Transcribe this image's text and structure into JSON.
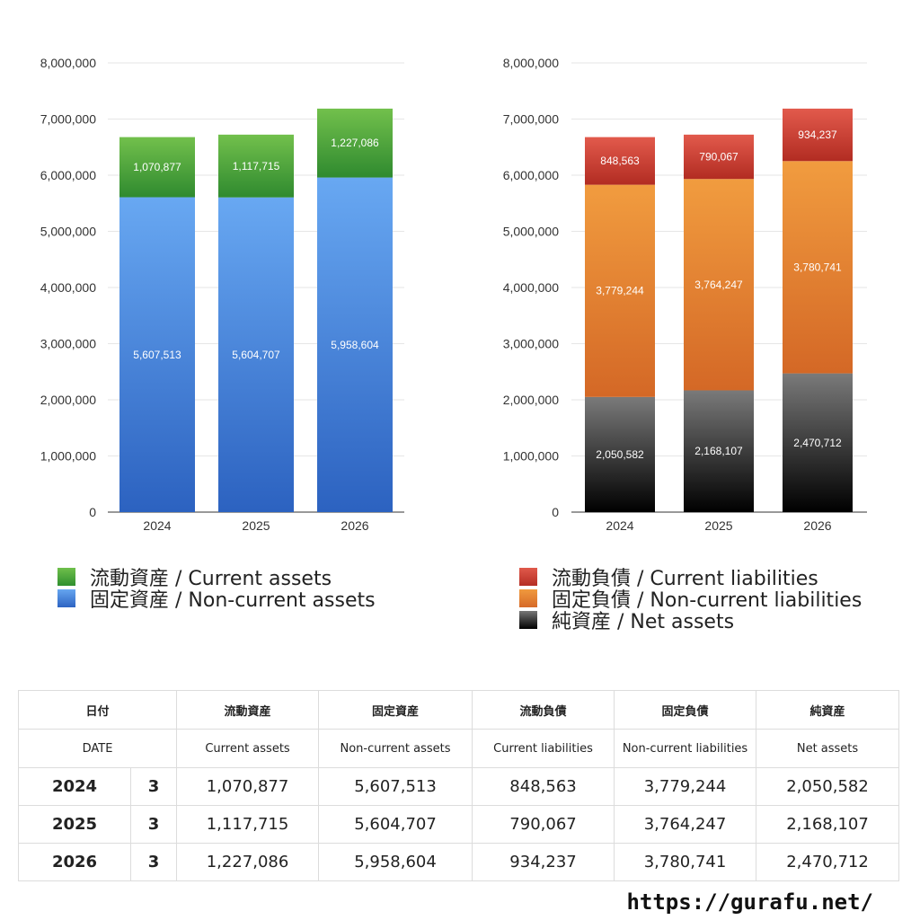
{
  "chart_data": [
    {
      "type": "bar",
      "stacked": true,
      "categories": [
        "2024",
        "2025",
        "2026"
      ],
      "ylim": [
        0,
        8000000
      ],
      "yticks": [
        "0",
        "1,000,000",
        "2,000,000",
        "3,000,000",
        "4,000,000",
        "5,000,000",
        "6,000,000",
        "7,000,000",
        "8,000,000"
      ],
      "grid": true,
      "legend_position": "bottom",
      "series": [
        {
          "name": "固定資産 / Non-current assets",
          "values": [
            5607513,
            5604707,
            5958604
          ],
          "labels": [
            "5,607,513",
            "5,604,707",
            "5,958,604"
          ],
          "color": "#4a86dc"
        },
        {
          "name": "流動資産 / Current assets",
          "values": [
            1070877,
            1117715,
            1227086
          ],
          "labels": [
            "1,070,877",
            "1,117,715",
            "1,227,086"
          ],
          "color": "#4fa83c"
        }
      ]
    },
    {
      "type": "bar",
      "stacked": true,
      "categories": [
        "2024",
        "2025",
        "2026"
      ],
      "ylim": [
        0,
        8000000
      ],
      "yticks": [
        "0",
        "1,000,000",
        "2,000,000",
        "3,000,000",
        "4,000,000",
        "5,000,000",
        "6,000,000",
        "7,000,000",
        "8,000,000"
      ],
      "grid": true,
      "legend_position": "bottom",
      "series": [
        {
          "name": "純資産 / Net assets",
          "values": [
            2050582,
            2168107,
            2470712
          ],
          "labels": [
            "2,050,582",
            "2,168,107",
            "2,470,712"
          ],
          "color": "#333333"
        },
        {
          "name": "固定負債 / Non-current liabilities",
          "values": [
            3779244,
            3764247,
            3780741
          ],
          "labels": [
            "3,779,244",
            "3,764,247",
            "3,780,741"
          ],
          "color": "#e07f32"
        },
        {
          "name": "流動負債 / Current liabilities",
          "values": [
            848563,
            790067,
            934237
          ],
          "labels": [
            "848,563",
            "790,067",
            "934,237"
          ],
          "color": "#cc4336"
        }
      ]
    }
  ],
  "legends": {
    "left": [
      {
        "label": "流動資産 / Current assets"
      },
      {
        "label": "固定資産 / Non-current assets"
      }
    ],
    "right": [
      {
        "label": "流動負債 / Current liabilities"
      },
      {
        "label": "固定負債 / Non-current liabilities"
      },
      {
        "label": "純資産 / Net assets"
      }
    ]
  },
  "table": {
    "headers_jp": [
      "日付",
      "流動資産",
      "固定資産",
      "流動負債",
      "固定負債",
      "純資産"
    ],
    "headers_en": [
      "DATE",
      "Current assets",
      "Non-current assets",
      "Current liabilities",
      "Non-current liabilities",
      "Net assets"
    ],
    "rows": [
      {
        "date": "2024",
        "count": "3",
        "values": [
          "1,070,877",
          "5,607,513",
          "848,563",
          "3,779,244",
          "2,050,582"
        ]
      },
      {
        "date": "2025",
        "count": "3",
        "values": [
          "1,117,715",
          "5,604,707",
          "790,067",
          "3,764,247",
          "2,168,107"
        ]
      },
      {
        "date": "2026",
        "count": "3",
        "values": [
          "1,227,086",
          "5,958,604",
          "934,237",
          "3,780,741",
          "2,470,712"
        ]
      }
    ]
  },
  "footer": {
    "url": "https://gurafu.net/"
  }
}
